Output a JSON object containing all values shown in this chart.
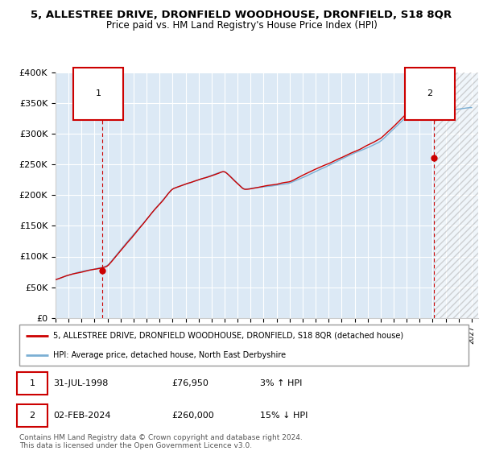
{
  "title1": "5, ALLESTREE DRIVE, DRONFIELD WOODHOUSE, DRONFIELD, S18 8QR",
  "title2": "Price paid vs. HM Land Registry's House Price Index (HPI)",
  "ylim": [
    0,
    400000
  ],
  "yticks": [
    0,
    50000,
    100000,
    150000,
    200000,
    250000,
    300000,
    350000,
    400000
  ],
  "ytick_labels": [
    "£0",
    "£50K",
    "£100K",
    "£150K",
    "£200K",
    "£250K",
    "£300K",
    "£350K",
    "£400K"
  ],
  "hpi_color": "#7bafd4",
  "price_color": "#cc0000",
  "point1_x": 1998.58,
  "point1_y": 76950,
  "point2_x": 2024.09,
  "point2_y": 260000,
  "legend_line1": "5, ALLESTREE DRIVE, DRONFIELD WOODHOUSE, DRONFIELD, S18 8QR (detached house)",
  "legend_line2": "HPI: Average price, detached house, North East Derbyshire",
  "footnote": "Contains HM Land Registry data © Crown copyright and database right 2024.\nThis data is licensed under the Open Government Licence v3.0.",
  "bg_color": "#dce9f5",
  "future_bg_color": "#e8eef5",
  "grid_color": "#ffffff",
  "xlim_start": 1995.0,
  "xlim_end": 2027.5,
  "cutoff": 2024.15
}
